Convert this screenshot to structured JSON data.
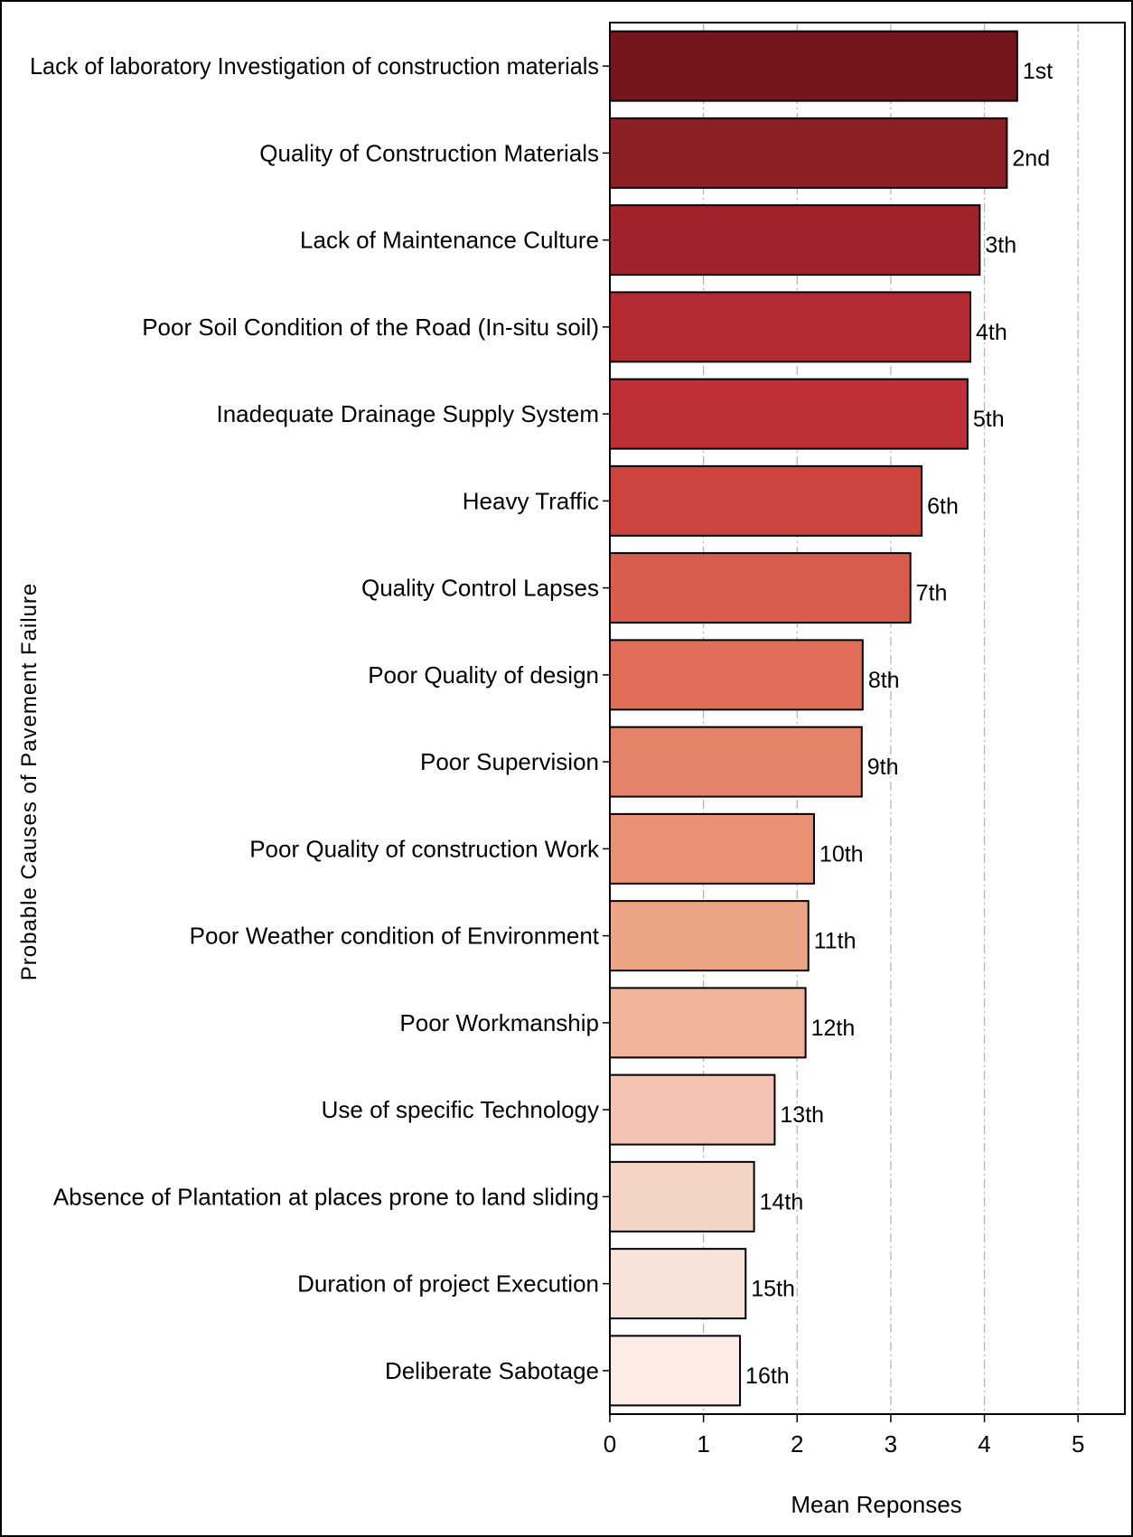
{
  "chart_data": {
    "type": "bar",
    "orientation": "horizontal",
    "ylabel": "Probable Causes of Pavement Failure",
    "xlabel": "Mean Reponses",
    "xlim": [
      0,
      5.5
    ],
    "xticks": [
      "0",
      "1",
      "2",
      "3",
      "4",
      "5"
    ],
    "grid": "vertical dashed",
    "categories": [
      "Lack of laboratory Investigation of construction materials",
      "Quality of Construction Materials",
      "Lack of Maintenance Culture",
      "Poor Soil Condition of the Road (In-situ soil)",
      "Inadequate Drainage Supply System",
      "Heavy Traffic",
      "Quality Control Lapses",
      "Poor Quality of design",
      "Poor Supervision",
      "Poor Quality of construction Work",
      "Poor Weather condition of Environment",
      "Poor Workmanship",
      "Use of specific Technology",
      "Absence of Plantation at places prone to land sliding",
      "Duration of project Execution",
      "Deliberate Sabotage"
    ],
    "values": [
      4.35,
      4.24,
      3.95,
      3.85,
      3.82,
      3.33,
      3.21,
      2.7,
      2.69,
      2.18,
      2.12,
      2.09,
      1.76,
      1.54,
      1.45,
      1.39
    ],
    "ranks": [
      "1st",
      "2nd",
      "3th",
      "4th",
      "5th",
      "6th",
      "7th",
      "8th",
      "9th",
      "10th",
      "11th",
      "12th",
      "13th",
      "14th",
      "15th",
      "16th"
    ],
    "colors": [
      "#75161e",
      "#8c1f23",
      "#9f2328",
      "#b32b30",
      "#bf3036",
      "#cc443d",
      "#d85d4f",
      "#e06d58",
      "#e5826a",
      "#e99174",
      "#eda386",
      "#f0b49b",
      "#f2c4b1",
      "#f5d4c6",
      "#f7e2d9",
      "#faebe5"
    ]
  }
}
